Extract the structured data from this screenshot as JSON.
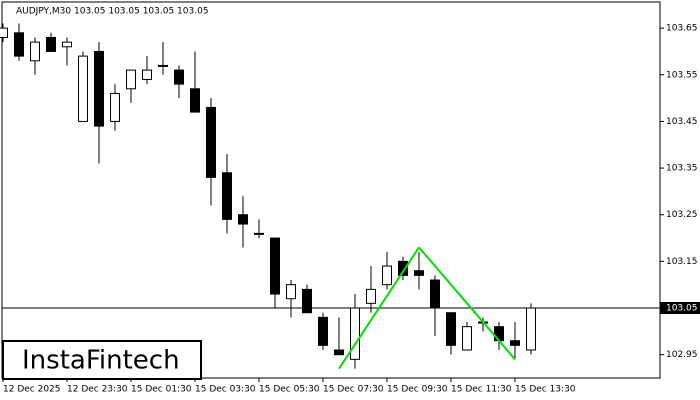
{
  "chart_data": {
    "type": "candlestick",
    "title": "AUDJPY,M30  103.05 103.05 103.05 103.05",
    "watermark": "InstaFintech",
    "categories": [
      "12 Dec 2025",
      null,
      null,
      null,
      "12 Dec 23:30",
      null,
      null,
      null,
      "15 Dec 01:30",
      null,
      null,
      null,
      "15 Dec 03:30",
      null,
      null,
      null,
      "15 Dec 05:30",
      null,
      null,
      null,
      "15 Dec 07:30",
      null,
      null,
      null,
      "15 Dec 09:30",
      null,
      null,
      null,
      "15 Dec 11:30",
      null,
      null,
      null,
      "15 Dec 13:30",
      null
    ],
    "open": [
      103.63,
      103.64,
      103.58,
      103.63,
      103.61,
      103.45,
      103.6,
      103.45,
      103.52,
      103.54,
      103.57,
      103.56,
      103.52,
      103.48,
      103.34,
      103.25,
      103.21,
      103.2,
      103.07,
      103.09,
      103.03,
      102.96,
      102.94,
      103.06,
      103.1,
      103.15,
      103.13,
      103.11,
      103.04,
      102.96,
      103.02,
      103.01,
      102.98,
      102.96
    ],
    "high": [
      103.66,
      103.66,
      103.63,
      103.64,
      103.63,
      103.6,
      103.62,
      103.53,
      103.56,
      103.59,
      103.62,
      103.57,
      103.6,
      103.5,
      103.38,
      103.29,
      103.24,
      103.2,
      103.11,
      103.1,
      103.04,
      103.03,
      103.08,
      103.14,
      103.17,
      103.16,
      103.17,
      103.12,
      103.04,
      103.02,
      103.03,
      103.02,
      103.02,
      103.06
    ],
    "low": [
      103.62,
      103.58,
      103.55,
      103.6,
      103.57,
      103.45,
      103.36,
      103.43,
      103.49,
      103.53,
      103.55,
      103.5,
      103.47,
      103.27,
      103.21,
      103.18,
      103.2,
      103.05,
      103.03,
      103.04,
      102.96,
      102.95,
      102.92,
      103.04,
      103.09,
      103.11,
      103.09,
      102.99,
      102.95,
      102.96,
      103.0,
      102.96,
      102.94,
      102.95
    ],
    "close": [
      103.65,
      103.59,
      103.62,
      103.6,
      103.62,
      103.59,
      103.44,
      103.51,
      103.56,
      103.56,
      103.57,
      103.53,
      103.47,
      103.33,
      103.24,
      103.23,
      103.21,
      103.08,
      103.1,
      103.04,
      102.97,
      102.95,
      103.05,
      103.09,
      103.14,
      103.12,
      103.12,
      103.05,
      102.97,
      103.01,
      103.02,
      102.98,
      102.97,
      103.05
    ],
    "up_color": "#ffffff",
    "down_color": "#000000",
    "pattern": {
      "color": "#00e000",
      "values": [
        null,
        null,
        null,
        null,
        null,
        null,
        null,
        null,
        null,
        null,
        null,
        null,
        null,
        null,
        null,
        null,
        null,
        null,
        null,
        null,
        null,
        102.92,
        null,
        null,
        null,
        null,
        103.18,
        null,
        null,
        null,
        null,
        null,
        102.94,
        null
      ]
    },
    "current_price": 103.05,
    "ylim": [
      102.9,
      103.706
    ],
    "yticks": [
      103.65,
      103.55,
      103.45,
      103.35,
      103.25,
      103.15,
      103.05,
      102.95
    ],
    "grid": false
  }
}
